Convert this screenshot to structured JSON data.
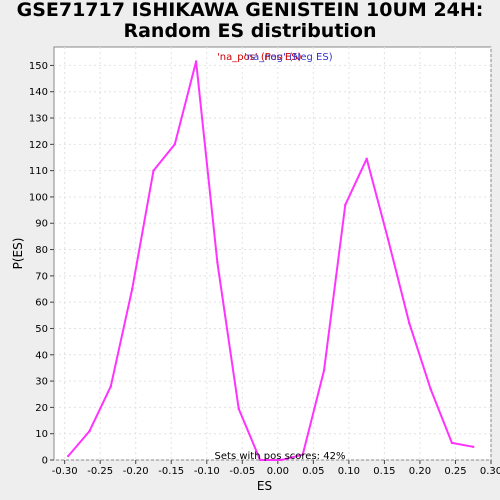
{
  "chart_data": {
    "type": "line",
    "title_line1": "GSE71717 ISHIKAWA GENISTEIN 10UM 24H:",
    "title_line2": "Random ES distribution",
    "xlabel": "ES",
    "ylabel": "P(ES)",
    "xlim": [
      -0.315,
      0.3
    ],
    "ylim": [
      0,
      157
    ],
    "x_ticks": [
      -0.3,
      -0.25,
      -0.2,
      -0.15,
      -0.1,
      -0.05,
      0.0,
      0.05,
      0.1,
      0.15,
      0.2,
      0.25,
      0.3
    ],
    "x_tick_labels": [
      "-0.30",
      "-0.25",
      "-0.20",
      "-0.15",
      "-0.10",
      "-0.05",
      "0.00",
      "0.05",
      "0.10",
      "0.15",
      "0.20",
      "0.25",
      "0.30"
    ],
    "y_ticks": [
      0,
      10,
      20,
      30,
      40,
      50,
      60,
      70,
      80,
      90,
      100,
      110,
      120,
      130,
      140,
      150
    ],
    "y_tick_labels": [
      "0",
      "10",
      "20",
      "30",
      "40",
      "50",
      "60",
      "70",
      "80",
      "90",
      "100",
      "110",
      "120",
      "130",
      "140",
      "150"
    ],
    "grid": true,
    "legend": [
      {
        "label": "'na_pos' (Pos ES)",
        "color": "#cc0000"
      },
      {
        "label": "'na_neg' (Neg ES)",
        "color": "#3333cc"
      }
    ],
    "annotation": "Sets with pos scores: 42%",
    "series": [
      {
        "name": "Random ES",
        "color": "#ff33ff",
        "x": [
          -0.295,
          -0.265,
          -0.235,
          -0.205,
          -0.175,
          -0.145,
          -0.115,
          -0.085,
          -0.055,
          -0.025,
          0.005,
          0.035,
          0.065,
          0.095,
          0.125,
          0.155,
          0.185,
          0.215,
          0.245,
          0.275
        ],
        "y": [
          1.5,
          11,
          28,
          65,
          110,
          120,
          151.5,
          75,
          19.5,
          0,
          0,
          2,
          34,
          97,
          114.5,
          84,
          52,
          27,
          6.5,
          5
        ]
      }
    ]
  }
}
